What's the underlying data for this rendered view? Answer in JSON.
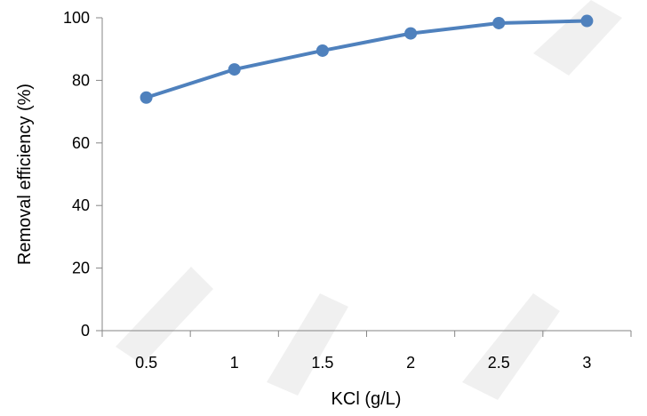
{
  "chart_data": {
    "type": "line",
    "title": "",
    "xlabel": "KCl (g/L)",
    "ylabel": "Removal efficiency (%)",
    "categories": [
      "0.5",
      "1",
      "1.5",
      "2",
      "2.5",
      "3"
    ],
    "series": [
      {
        "values": [
          74.5,
          83.5,
          89.5,
          95.0,
          98.3,
          99.0
        ]
      }
    ],
    "ylim": [
      0,
      100
    ],
    "yticks": [
      "0",
      "20",
      "40",
      "60",
      "80",
      "100"
    ],
    "grid": false,
    "legend": "none",
    "colors": {
      "series": "#4F81BD",
      "axis": "#868686"
    }
  }
}
